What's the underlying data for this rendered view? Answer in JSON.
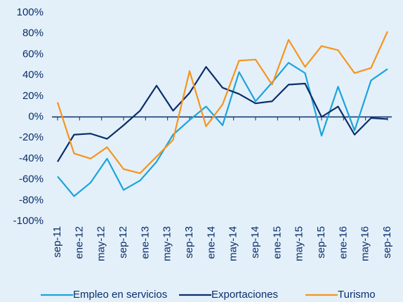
{
  "chart_data": {
    "type": "line",
    "x": [
      0,
      3,
      6,
      9,
      12,
      15,
      18,
      21,
      24,
      27,
      30,
      33,
      36,
      39,
      42,
      45,
      48,
      51,
      54,
      57,
      60
    ],
    "xlim": [
      0,
      60
    ],
    "xticks": [
      {
        "value": 0,
        "label": "sep-11"
      },
      {
        "value": 4,
        "label": "ene-12"
      },
      {
        "value": 8,
        "label": "may-12"
      },
      {
        "value": 12,
        "label": "sep-12"
      },
      {
        "value": 16,
        "label": "ene-13"
      },
      {
        "value": 20,
        "label": "may-13"
      },
      {
        "value": 24,
        "label": "sep-13"
      },
      {
        "value": 28,
        "label": "ene-14"
      },
      {
        "value": 32,
        "label": "may-14"
      },
      {
        "value": 36,
        "label": "sep-14"
      },
      {
        "value": 40,
        "label": "ene-15"
      },
      {
        "value": 44,
        "label": "may-15"
      },
      {
        "value": 48,
        "label": "sep-15"
      },
      {
        "value": 52,
        "label": "ene-16"
      },
      {
        "value": 56,
        "label": "may-16"
      },
      {
        "value": 60,
        "label": "sep-16"
      }
    ],
    "ylim": [
      -100,
      100
    ],
    "yticks": [
      {
        "value": 100,
        "label": "100%"
      },
      {
        "value": 80,
        "label": "80%"
      },
      {
        "value": 60,
        "label": "60%"
      },
      {
        "value": 40,
        "label": "40%"
      },
      {
        "value": 20,
        "label": "20%"
      },
      {
        "value": 0,
        "label": "0%"
      },
      {
        "value": -20,
        "label": "-20%"
      },
      {
        "value": -40,
        "label": "-40%"
      },
      {
        "value": -60,
        "label": "-60%"
      },
      {
        "value": -80,
        "label": "-80%"
      },
      {
        "value": -100,
        "label": "-100%"
      }
    ],
    "grid": false,
    "legend": "bottom",
    "series": [
      {
        "name": "Empleo en servicios",
        "color": "#1ca3dc",
        "values": [
          -57,
          -76,
          -63,
          -40,
          -70,
          -61,
          -43,
          -17,
          -3,
          10,
          -8,
          43,
          15,
          33,
          52,
          42,
          -18,
          29,
          -13,
          35,
          46
        ]
      },
      {
        "name": "Exportaciones",
        "color": "#0b2d6b",
        "values": [
          -43,
          -17,
          -16,
          -21,
          -8,
          6,
          30,
          6,
          23,
          48,
          28,
          22,
          13,
          15,
          31,
          32,
          0,
          10,
          -17,
          -1,
          -2
        ]
      },
      {
        "name": "Turismo",
        "color": "#f7941d",
        "values": [
          14,
          -35,
          -40,
          -29,
          -50,
          -54,
          -38,
          -22,
          44,
          -9,
          12,
          54,
          55,
          31,
          74,
          48,
          68,
          64,
          42,
          47,
          82
        ]
      }
    ]
  }
}
